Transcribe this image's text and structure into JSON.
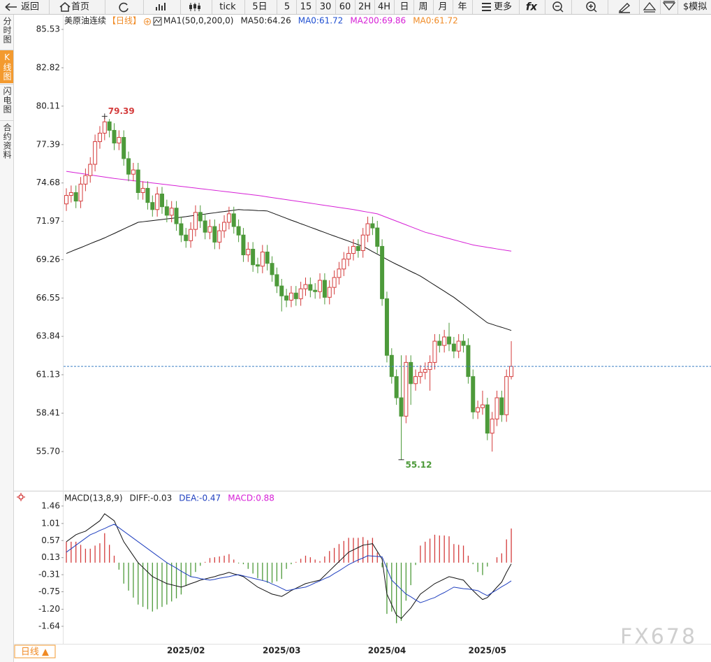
{
  "toolbar": [
    "返回",
    "首页",
    "tick",
    "5日",
    "5",
    "15",
    "30",
    "60",
    "2H",
    "4H",
    "日",
    "周",
    "月",
    "年",
    "更多",
    "fx",
    "$模拟"
  ],
  "sidebar": [
    "分时图",
    "K线图",
    "闪电图",
    "合约资料"
  ],
  "tab": "日线 ▲",
  "watermark": "FX678",
  "chart_data": [
    {
      "type": "candlestick",
      "title": "美原油连续",
      "subtitle": "【日线】",
      "legend": [
        {
          "text": "MA1(50,0,200,0)",
          "color": "#222222"
        },
        {
          "text": "MA50:64.26",
          "color": "#222222"
        },
        {
          "text": "MA0:61.72",
          "color": "#1f4fd1"
        },
        {
          "text": "MA200:69.86",
          "color": "#d61fd6"
        },
        {
          "text": "MA0:61.72",
          "color": "#f08a24"
        }
      ],
      "categories": [
        null,
        null,
        null,
        null,
        null,
        null,
        null,
        null,
        null,
        null,
        null,
        null,
        null,
        null,
        null,
        null,
        null,
        null,
        null,
        null,
        null,
        null,
        null,
        null,
        null,
        "2025/02",
        null,
        null,
        null,
        null,
        null,
        null,
        null,
        null,
        null,
        null,
        null,
        null,
        null,
        null,
        null,
        null,
        null,
        null,
        null,
        "2025/03",
        null,
        null,
        null,
        null,
        null,
        null,
        null,
        null,
        null,
        null,
        null,
        null,
        null,
        null,
        null,
        null,
        null,
        null,
        null,
        null,
        null,
        "2025/04",
        null,
        null,
        null,
        null,
        null,
        null,
        null,
        null,
        null,
        null,
        null,
        null,
        null,
        null,
        null,
        null,
        null,
        null,
        null,
        null,
        "2025/05",
        null,
        null,
        null,
        null,
        null
      ],
      "open": [
        73.2,
        73.8,
        74.0,
        73.4,
        74.6,
        75.2,
        76.0,
        77.6,
        78.2,
        79.0,
        78.4,
        77.5,
        77.9,
        76.4,
        75.3,
        75.6,
        74.0,
        74.3,
        73.3,
        72.8,
        73.9,
        73.0,
        72.4,
        72.9,
        71.8,
        71.0,
        70.6,
        71.4,
        72.6,
        72.0,
        71.2,
        71.6,
        70.5,
        71.3,
        71.9,
        72.5,
        71.6,
        71.0,
        69.6,
        70.0,
        68.9,
        68.8,
        69.8,
        69.0,
        68.2,
        67.4,
        66.7,
        66.4,
        66.9,
        66.5,
        67.2,
        67.5,
        67.1,
        67.0,
        67.8,
        66.6,
        67.3,
        68.0,
        68.6,
        69.3,
        69.7,
        70.2,
        69.9,
        71.0,
        71.8,
        71.5,
        70.2,
        66.5,
        62.5,
        61.0,
        59.5,
        58.2,
        62.0,
        60.5,
        61.0,
        61.3,
        61.5,
        62.0,
        63.5,
        63.2,
        63.8,
        63.3,
        62.8,
        63.5,
        63.2,
        61.0,
        58.5,
        58.8,
        59.0,
        57.0,
        58.0,
        59.5,
        58.3,
        61.0
      ],
      "high": [
        74.3,
        74.5,
        74.5,
        75.1,
        75.7,
        76.5,
        78.1,
        78.7,
        79.39,
        79.2,
        78.9,
        78.4,
        78.4,
        76.9,
        76.1,
        76.1,
        74.8,
        74.8,
        73.8,
        74.4,
        74.4,
        73.5,
        73.4,
        73.4,
        72.3,
        71.5,
        71.9,
        73.1,
        73.1,
        72.5,
        72.1,
        72.1,
        71.8,
        72.4,
        73.0,
        73.0,
        72.1,
        71.5,
        70.5,
        70.5,
        69.4,
        70.3,
        70.3,
        69.5,
        68.7,
        67.9,
        67.2,
        67.4,
        67.4,
        67.7,
        68.0,
        68.0,
        67.6,
        68.3,
        68.3,
        67.8,
        68.5,
        69.1,
        69.8,
        70.2,
        70.7,
        70.7,
        71.5,
        72.3,
        72.3,
        72.0,
        70.7,
        67.0,
        63.0,
        61.5,
        62.5,
        62.5,
        62.5,
        61.5,
        61.8,
        62.0,
        62.5,
        64.0,
        64.0,
        64.3,
        64.8,
        63.8,
        64.0,
        64.0,
        63.7,
        61.5,
        59.3,
        60.0,
        59.5,
        58.5,
        60.0,
        60.0,
        61.5,
        63.5
      ],
      "low": [
        72.7,
        73.3,
        72.9,
        72.9,
        74.1,
        74.7,
        75.5,
        77.1,
        77.7,
        77.9,
        77.0,
        77.0,
        75.9,
        74.8,
        74.8,
        73.5,
        73.5,
        72.8,
        72.3,
        72.3,
        72.5,
        71.9,
        71.9,
        71.3,
        70.5,
        70.1,
        70.1,
        70.9,
        71.5,
        70.7,
        70.7,
        70.0,
        70.0,
        70.8,
        71.4,
        71.1,
        70.5,
        69.1,
        69.1,
        68.4,
        68.3,
        68.3,
        68.5,
        67.7,
        66.9,
        65.6,
        65.9,
        65.9,
        66.0,
        66.0,
        66.7,
        66.6,
        66.5,
        66.5,
        66.1,
        66.1,
        66.8,
        67.5,
        68.1,
        68.8,
        69.2,
        69.4,
        69.4,
        70.5,
        71.0,
        69.7,
        66.0,
        62.0,
        60.5,
        59.0,
        55.12,
        57.7,
        59.0,
        60.0,
        60.5,
        60.8,
        60.0,
        61.5,
        62.7,
        62.7,
        62.8,
        62.3,
        62.3,
        62.7,
        60.5,
        58.0,
        58.0,
        58.3,
        56.5,
        55.7,
        57.5,
        57.8,
        57.8,
        60.8
      ],
      "close": [
        73.8,
        74.0,
        73.4,
        74.6,
        75.2,
        76.0,
        77.6,
        78.2,
        79.0,
        78.4,
        77.5,
        77.9,
        76.4,
        75.3,
        75.6,
        74.0,
        74.3,
        73.3,
        72.8,
        73.9,
        73.0,
        72.4,
        72.9,
        71.8,
        71.0,
        70.6,
        71.4,
        72.6,
        72.0,
        71.2,
        71.6,
        70.5,
        71.3,
        71.9,
        72.5,
        71.6,
        71.0,
        69.6,
        70.0,
        68.9,
        68.8,
        69.8,
        69.0,
        68.2,
        67.4,
        66.7,
        66.4,
        66.9,
        66.5,
        67.2,
        67.5,
        67.1,
        67.0,
        67.8,
        66.6,
        67.3,
        68.0,
        68.6,
        69.3,
        69.7,
        70.2,
        69.9,
        71.0,
        71.8,
        71.5,
        70.2,
        66.5,
        62.5,
        61.0,
        59.5,
        58.2,
        62.0,
        60.5,
        61.0,
        61.3,
        61.5,
        62.0,
        63.5,
        63.2,
        63.8,
        63.3,
        62.8,
        63.5,
        63.2,
        61.0,
        58.5,
        58.8,
        59.0,
        57.0,
        58.0,
        59.5,
        58.3,
        61.0,
        61.72
      ],
      "up_color": "#d43c3c",
      "down_color": "#4d9a3a",
      "last_line_color": "#3b7fc4",
      "series": [
        {
          "color": "#111111",
          "values": [
            69.7,
            69.84,
            69.98,
            70.11,
            70.25,
            70.39,
            70.53,
            70.66,
            70.8,
            70.96,
            71.11,
            71.27,
            71.43,
            71.59,
            71.74,
            71.9,
            71.94,
            71.98,
            72.02,
            72.06,
            72.1,
            72.14,
            72.18,
            72.22,
            72.26,
            72.3,
            72.35,
            72.39,
            72.44,
            72.48,
            72.53,
            72.57,
            72.62,
            72.66,
            72.71,
            72.75,
            72.8,
            72.78,
            72.77,
            72.75,
            72.73,
            72.72,
            72.7,
            72.57,
            72.44,
            72.31,
            72.18,
            72.05,
            71.93,
            71.8,
            71.68,
            71.55,
            71.43,
            71.3,
            71.18,
            71.05,
            70.93,
            70.81,
            70.69,
            70.57,
            70.44,
            70.32,
            70.2,
            70.02,
            69.83,
            69.65,
            69.47,
            69.28,
            69.1,
            68.93,
            68.77,
            68.6,
            68.43,
            68.27,
            68.1,
            67.89,
            67.67,
            67.46,
            67.24,
            67.03,
            66.81,
            66.6,
            66.34,
            66.09,
            65.83,
            65.57,
            65.31,
            65.06,
            64.8,
            64.69,
            64.58,
            64.48,
            64.37,
            64.26
          ]
        },
        {
          "color": "#d61fd6",
          "values": [
            75.5,
            75.45,
            75.4,
            75.35,
            75.3,
            75.25,
            75.2,
            75.15,
            75.1,
            75.05,
            75.0,
            74.96,
            74.92,
            74.88,
            74.84,
            74.8,
            74.76,
            74.72,
            74.68,
            74.64,
            74.6,
            74.56,
            74.52,
            74.48,
            74.44,
            74.4,
            74.36,
            74.32,
            74.28,
            74.24,
            74.2,
            74.16,
            74.12,
            74.08,
            74.04,
            74.0,
            73.96,
            73.92,
            73.88,
            73.84,
            73.8,
            73.75,
            73.7,
            73.65,
            73.6,
            73.55,
            73.5,
            73.45,
            73.4,
            73.35,
            73.3,
            73.25,
            73.2,
            73.15,
            73.1,
            73.05,
            73.0,
            72.95,
            72.9,
            72.85,
            72.8,
            72.74,
            72.68,
            72.62,
            72.56,
            72.5,
            72.37,
            72.24,
            72.11,
            71.98,
            71.85,
            71.72,
            71.59,
            71.46,
            71.33,
            71.2,
            71.11,
            71.02,
            70.93,
            70.84,
            70.75,
            70.66,
            70.57,
            70.48,
            70.39,
            70.3,
            70.24,
            70.19,
            70.13,
            70.08,
            70.02,
            69.97,
            69.91,
            69.86
          ]
        }
      ],
      "ylim": [
        53.03,
        85.88
      ],
      "yticks": [
        85.53,
        82.82,
        80.11,
        77.39,
        74.68,
        71.97,
        69.26,
        66.55,
        63.84,
        61.13,
        58.41,
        {
          "value": 55.7,
          "label": "55.70"
        }
      ],
      "grid": false
    },
    {
      "type": "macd",
      "legend": [
        {
          "text": "MACD(13,8,9)",
          "color": "#222222"
        },
        {
          "text": "DIFF:-0.03",
          "color": "#222222"
        },
        {
          "text": "DEA:-0.47",
          "color": "#1f3fbf"
        },
        {
          "text": "MACD:0.88",
          "color": "#d61fd6"
        }
      ],
      "series": [
        {
          "color": "#111111",
          "values": [
            0.54,
            0.63,
            0.72,
            0.77,
            0.81,
            0.9,
            0.99,
            1.08,
            1.26,
            1.17,
            1.08,
            0.81,
            0.54,
            0.36,
            0.18,
            0.0,
            -0.12,
            -0.24,
            -0.36,
            -0.42,
            -0.48,
            -0.54,
            -0.57,
            -0.6,
            -0.63,
            -0.59,
            -0.54,
            -0.5,
            -0.45,
            -0.42,
            -0.39,
            -0.36,
            -0.32,
            -0.29,
            -0.25,
            -0.29,
            -0.32,
            -0.36,
            -0.45,
            -0.54,
            -0.63,
            -0.69,
            -0.75,
            -0.81,
            -0.84,
            -0.87,
            -0.8,
            -0.72,
            -0.66,
            -0.6,
            -0.54,
            -0.51,
            -0.48,
            -0.45,
            -0.33,
            -0.21,
            -0.09,
            0.03,
            0.15,
            0.27,
            0.33,
            0.39,
            0.45,
            0.47,
            0.49,
            0.29,
            0.09,
            -0.81,
            -1.08,
            -1.35,
            -1.44,
            -1.3,
            -1.17,
            -0.99,
            -0.81,
            -0.72,
            -0.63,
            -0.54,
            -0.48,
            -0.42,
            -0.36,
            -0.39,
            -0.42,
            -0.45,
            -0.59,
            -0.72,
            -0.84,
            -0.95,
            -0.9,
            -0.77,
            -0.63,
            -0.5,
            -0.25,
            -0.03
          ]
        },
        {
          "color": "#1f3fbf",
          "values": [
            0.27,
            0.36,
            0.45,
            0.54,
            0.63,
            0.72,
            0.77,
            0.83,
            0.88,
            0.94,
            0.99,
            0.9,
            0.81,
            0.72,
            0.63,
            0.54,
            0.45,
            0.36,
            0.27,
            0.18,
            0.09,
            0.0,
            -0.07,
            -0.14,
            -0.22,
            -0.29,
            -0.36,
            -0.38,
            -0.41,
            -0.43,
            -0.45,
            -0.43,
            -0.4,
            -0.38,
            -0.36,
            -0.33,
            -0.31,
            -0.34,
            -0.37,
            -0.4,
            -0.43,
            -0.46,
            -0.49,
            -0.55,
            -0.6,
            -0.66,
            -0.72,
            -0.7,
            -0.67,
            -0.65,
            -0.63,
            -0.58,
            -0.52,
            -0.47,
            -0.41,
            -0.36,
            -0.28,
            -0.21,
            -0.13,
            -0.05,
            0.01,
            0.07,
            0.12,
            0.18,
            0.17,
            0.16,
            0.15,
            -0.15,
            -0.45,
            -0.57,
            -0.69,
            -0.81,
            -0.88,
            -0.96,
            -1.03,
            -0.99,
            -0.94,
            -0.9,
            -0.83,
            -0.77,
            -0.7,
            -0.63,
            -0.65,
            -0.67,
            -0.68,
            -0.7,
            -0.72,
            -0.79,
            -0.85,
            -0.77,
            -0.7,
            -0.62,
            -0.55,
            -0.47
          ]
        }
      ],
      "histogram": {
        "up_color": "#d43c3c",
        "down_color": "#4d9a3a",
        "values": [
          0.54,
          0.54,
          0.54,
          0.46,
          0.36,
          0.36,
          0.44,
          0.5,
          0.76,
          0.46,
          0.18,
          -0.18,
          -0.54,
          -0.72,
          -0.9,
          -1.08,
          -1.14,
          -1.2,
          -1.26,
          -1.2,
          -1.14,
          -1.08,
          -1.0,
          -0.92,
          -0.82,
          -0.6,
          -0.36,
          -0.24,
          -0.08,
          0.02,
          0.12,
          0.14,
          0.16,
          0.18,
          0.22,
          0.08,
          -0.02,
          -0.04,
          -0.16,
          -0.28,
          -0.4,
          -0.46,
          -0.52,
          -0.52,
          -0.48,
          -0.42,
          -0.16,
          -0.04,
          0.02,
          0.1,
          0.18,
          0.14,
          0.08,
          0.04,
          0.16,
          0.3,
          0.38,
          0.48,
          0.56,
          0.64,
          0.64,
          0.64,
          0.66,
          0.58,
          0.64,
          0.26,
          -0.12,
          -1.32,
          -1.26,
          -1.56,
          -1.5,
          -0.98,
          -0.58,
          -0.06,
          0.44,
          0.54,
          0.62,
          0.72,
          0.7,
          0.7,
          0.68,
          0.48,
          0.46,
          0.44,
          0.18,
          -0.04,
          -0.24,
          -0.32,
          -0.1,
          0.0,
          0.14,
          0.24,
          0.6,
          0.88
        ]
      },
      "ylim": [
        -2.11,
        1.8
      ],
      "yticks": [
        1.46,
        1.01,
        0.57,
        0.13,
        -0.31,
        -0.75,
        {
          "value": -1.2,
          "label": "-1.20"
        },
        -1.64
      ],
      "grid": false
    }
  ]
}
